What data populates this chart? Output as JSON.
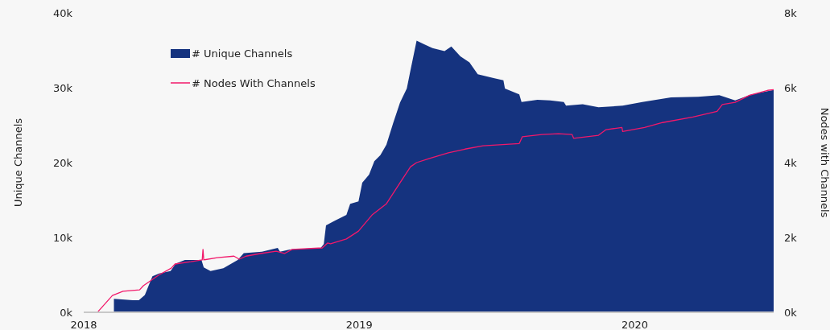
{
  "chart_data": {
    "type": "area",
    "ylabel": "Unique Channels",
    "y2label": "Nodes with Channels",
    "xlim": [
      "2018-01-01",
      "2020-07-03"
    ],
    "xticks": [
      {
        "value": "2018-01-01",
        "label": "2018"
      },
      {
        "value": "2019-01-01",
        "label": "2019"
      },
      {
        "value": "2020-01-01",
        "label": "2020"
      }
    ],
    "ylim": [
      0,
      40000
    ],
    "yticks": [
      {
        "value": 0,
        "label": "0k"
      },
      {
        "value": 10000,
        "label": "10k"
      },
      {
        "value": 20000,
        "label": "20k"
      },
      {
        "value": 30000,
        "label": "30k"
      },
      {
        "value": 40000,
        "label": "40k"
      }
    ],
    "y2lim": [
      0,
      8000
    ],
    "y2ticks": [
      {
        "value": 0,
        "label": "0k"
      },
      {
        "value": 2000,
        "label": "2k"
      },
      {
        "value": 4000,
        "label": "4k"
      },
      {
        "value": 6000,
        "label": "6k"
      },
      {
        "value": 8000,
        "label": "8k"
      }
    ],
    "legend": "top left",
    "grid": false,
    "series": [
      {
        "name": "# Unique Channels",
        "color": "#15337f",
        "x": [
          "2018-02-10",
          "2018-03-07",
          "2018-03-15",
          "2018-03-23",
          "2018-04-02",
          "2018-04-11",
          "2018-04-26",
          "2018-05-03",
          "2018-05-15",
          "2018-06-06",
          "2018-06-09",
          "2018-06-18",
          "2018-07-05",
          "2018-07-24",
          "2018-08-01",
          "2018-08-25",
          "2018-09-15",
          "2018-09-18",
          "2018-10-01",
          "2018-11-11",
          "2018-11-15",
          "2018-11-18",
          "2018-11-29",
          "2018-12-15",
          "2018-12-20",
          "2018-12-31",
          "2019-01-05",
          "2019-01-14",
          "2019-01-21",
          "2019-01-29",
          "2019-02-06",
          "2019-02-15",
          "2019-02-24",
          "2019-03-05",
          "2019-03-10",
          "2019-03-18",
          "2019-03-28",
          "2019-04-08",
          "2019-04-24",
          "2019-05-03",
          "2019-05-15",
          "2019-05-27",
          "2019-06-07",
          "2019-06-28",
          "2019-07-11",
          "2019-07-13",
          "2019-08-01",
          "2019-08-04",
          "2019-08-25",
          "2019-09-11",
          "2019-09-29",
          "2019-10-02",
          "2019-10-24",
          "2019-11-14",
          "2019-12-16",
          "2020-01-11",
          "2020-02-18",
          "2020-03-25",
          "2020-04-22",
          "2020-05-13",
          "2020-06-04",
          "2020-07-03"
        ],
        "values": [
          1800,
          1600,
          1600,
          2300,
          4800,
          5200,
          5500,
          6500,
          7000,
          7000,
          6000,
          5500,
          5900,
          7000,
          7900,
          8100,
          8600,
          8100,
          8400,
          8600,
          9100,
          11600,
          12200,
          13000,
          14500,
          14800,
          17300,
          18400,
          20200,
          21000,
          22400,
          25300,
          28000,
          29900,
          32400,
          36300,
          35800,
          35300,
          34900,
          35500,
          34200,
          33400,
          31800,
          31300,
          31000,
          29900,
          29100,
          28100,
          28400,
          28300,
          28100,
          27600,
          27800,
          27400,
          27600,
          28100,
          28700,
          28800,
          29000,
          28300,
          29100,
          29700
        ]
      },
      {
        "name": "# Nodes With Channels",
        "type": "line",
        "axis": "y2",
        "color": "#f2186a",
        "x": [
          "2018-01-20",
          "2018-02-08",
          "2018-02-22",
          "2018-03-16",
          "2018-03-21",
          "2018-04-10",
          "2018-04-27",
          "2018-05-02",
          "2018-05-23",
          "2018-06-07",
          "2018-06-08",
          "2018-06-09",
          "2018-06-27",
          "2018-07-19",
          "2018-07-26",
          "2018-08-04",
          "2018-08-23",
          "2018-09-13",
          "2018-09-24",
          "2018-10-04",
          "2018-11-13",
          "2018-11-20",
          "2018-11-24",
          "2018-12-15",
          "2018-12-31",
          "2019-01-18",
          "2019-02-06",
          "2019-02-24",
          "2019-03-10",
          "2019-03-18",
          "2019-04-04",
          "2019-04-29",
          "2019-05-21",
          "2019-06-14",
          "2019-08-01",
          "2019-08-05",
          "2019-08-31",
          "2019-09-22",
          "2019-10-10",
          "2019-10-12",
          "2019-11-14",
          "2019-11-24",
          "2019-12-15",
          "2019-12-16",
          "2020-01-14",
          "2020-02-07",
          "2020-03-18",
          "2020-04-19",
          "2020-04-26",
          "2020-05-13",
          "2020-06-01",
          "2020-06-25",
          "2020-07-03"
        ],
        "values": [
          20,
          450,
          560,
          600,
          710,
          990,
          1180,
          1290,
          1350,
          1400,
          1680,
          1400,
          1460,
          1500,
          1420,
          1500,
          1570,
          1630,
          1570,
          1680,
          1720,
          1850,
          1830,
          1960,
          2170,
          2600,
          2900,
          3460,
          3890,
          4000,
          4110,
          4260,
          4360,
          4450,
          4510,
          4690,
          4750,
          4770,
          4750,
          4650,
          4730,
          4880,
          4940,
          4830,
          4940,
          5070,
          5220,
          5370,
          5550,
          5610,
          5800,
          5930,
          5950
        ]
      }
    ]
  }
}
